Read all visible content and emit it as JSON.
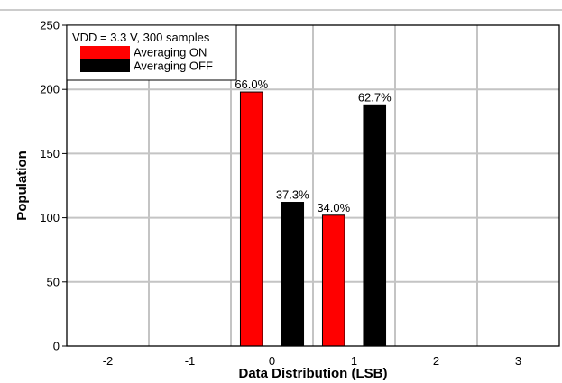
{
  "chart_data": {
    "type": "bar",
    "xlabel": "Data Distribution (LSB)",
    "ylabel": "Population",
    "xlim": [
      -2.5,
      3.5
    ],
    "ylim": [
      0,
      250
    ],
    "x_ticks": [
      "-2",
      "-1",
      "0",
      "1",
      "2",
      "3"
    ],
    "y_ticks": [
      "0",
      "50",
      "100",
      "150",
      "200",
      "250"
    ],
    "grid": true,
    "legend": {
      "placement": "top-left",
      "title": "VDD = 3.3 V, 300 samples"
    },
    "series": [
      {
        "name": "Averaging ON",
        "color": "#ff0000",
        "points": [
          {
            "x": 0,
            "y": 198,
            "label": "66.0%"
          },
          {
            "x": 1,
            "y": 102,
            "label": "34.0%"
          }
        ]
      },
      {
        "name": "Averaging OFF",
        "color": "#000000",
        "points": [
          {
            "x": 0,
            "y": 112,
            "label": "37.3%"
          },
          {
            "x": 1,
            "y": 188,
            "label": "62.7%"
          }
        ]
      }
    ]
  }
}
